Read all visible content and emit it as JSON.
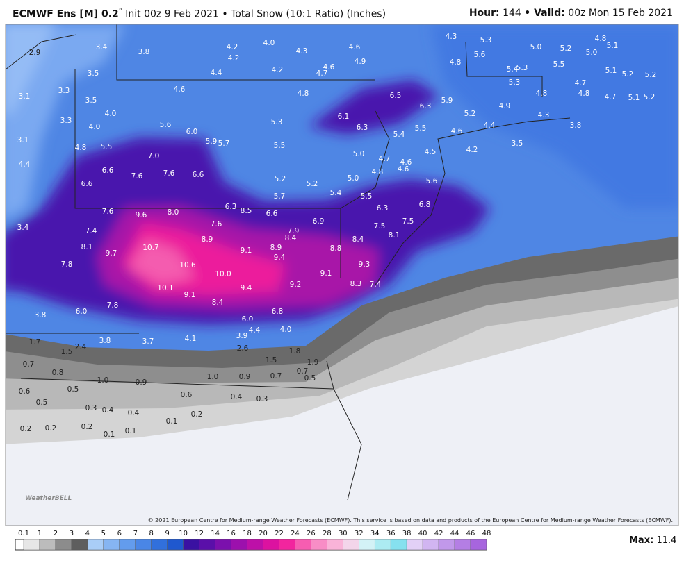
{
  "header": {
    "model": "ECMWF Ens [M] 0.2",
    "degree": "°",
    "subtitle": "Init 00z 9 Feb 2021 • Total Snow (10:1 Ratio) (Inches)",
    "hour_label": "Hour:",
    "hour": 144,
    "valid_label": "• Valid:",
    "valid": "00z Mon 15 Feb 2021"
  },
  "map": {
    "labels": [
      2.9,
      3.4,
      3.8,
      4.2,
      4.2,
      {
        "value": 4,
        "label": "4.0"
      },
      4.3,
      4.6,
      4.3,
      5.3,
      4.8,
      5.1,
      {
        "value": 5,
        "label": "5.0"
      },
      5.2,
      {
        "value": 5,
        "label": "5.0"
      },
      4.9,
      4.8,
      5.6,
      5.5,
      3.5,
      4.4,
      4.2,
      4.7,
      4.6,
      5.4,
      5.3,
      5.1,
      5.2,
      5.2,
      5.3,
      4.7,
      3.1,
      3.3,
      4.6,
      4.8,
      6.5,
      4.8,
      4.8,
      4.7,
      5.1,
      5.2,
      3.5,
      5.9,
      6.3,
      4.9,
      5.2,
      3.3,
      {
        "value": 4,
        "label": "4.0"
      },
      6.1,
      4.3,
      {
        "value": 4,
        "label": "4.0"
      },
      5.6,
      {
        "value": 6,
        "label": "6.0"
      },
      5.3,
      6.3,
      5.5,
      4.4,
      4.6,
      3.8,
      3.1,
      5.9,
      5.7,
      5.4,
      3.5,
      4.8,
      5.5,
      5.5,
      4.5,
      4.2,
      {
        "value": 7,
        "label": "7.0"
      },
      {
        "value": 5,
        "label": "5.0"
      },
      4.7,
      4.6,
      4.4,
      6.6,
      7.6,
      7.6,
      6.6,
      5.2,
      4.8,
      4.6,
      {
        "value": 5,
        "label": "5.0"
      },
      5.2,
      5.6,
      6.6,
      5.4,
      5.7,
      5.5,
      6.3,
      8.5,
      6.6,
      6.3,
      6.8,
      7.6,
      9.6,
      {
        "value": 8,
        "label": "8.0"
      },
      6.9,
      7.5,
      7.5,
      3.4,
      7.4,
      7.6,
      7.9,
      8.4,
      8.9,
      8.4,
      8.1,
      8.1,
      10.7,
      9.1,
      8.9,
      8.8,
      9.7,
      9.4,
      7.8,
      10.6,
      9.3,
      {
        "value": 10,
        "label": "10.0"
      },
      9.1,
      10.1,
      9.4,
      9.2,
      8.3,
      7.4,
      9.1,
      8.4,
      7.8,
      {
        "value": 6,
        "label": "6.0"
      },
      6.8,
      3.8,
      {
        "value": 6,
        "label": "6.0"
      },
      4.4,
      {
        "value": 4,
        "label": "4.0"
      },
      3.9,
      4.1,
      3.7,
      3.8,
      1.7,
      2.4,
      1.5,
      2.6,
      1.8,
      1.5,
      1.9,
      0.7,
      0.8,
      0.7,
      {
        "value": 1,
        "label": "1.0"
      },
      0.9,
      0.7,
      0.5,
      {
        "value": 1,
        "label": "1.0"
      },
      0.9,
      0.6,
      0.5,
      0.6,
      0.4,
      0.3,
      0.5,
      0.3,
      0.4,
      0.4,
      0.2,
      0.1,
      0.2,
      0.2,
      0.2,
      0.1,
      0.1
    ]
  },
  "colorbar": {
    "ticks": [
      0.1,
      1,
      2,
      3,
      4,
      5,
      6,
      7,
      8,
      9,
      10,
      12,
      14,
      16,
      18,
      20,
      22,
      24,
      26,
      28,
      30,
      32,
      34,
      36,
      38,
      40,
      42,
      44,
      46,
      48
    ],
    "colors": [
      "#e6e6e6",
      "#bcbcbc",
      "#8c8c8c",
      "#5e5e5e",
      "#a9cdf7",
      "#86b5f2",
      "#639ced",
      "#4a86e6",
      "#3170dc",
      "#1f58cf",
      "#3a11a2",
      "#5a0fa9",
      "#7b10ad",
      "#9c10ad",
      "#bd10a8",
      "#dc12a0",
      "#f2259e",
      "#f65db1",
      "#f88dc6",
      "#f9b3d8",
      "#f3d5ea",
      "#d3f2f6",
      "#acebf2",
      "#86e1ef",
      "#e2d0f6",
      "#d1b5f1",
      "#c198ea",
      "#b47ee4",
      "#a765de"
    ]
  },
  "footer": {
    "copyright": "© 2021 European Centre for Medium-range Weather Forecasts (ECMWF). This service is based on data and products of the European Centre for Medium-range Weather Forecasts (ECMWF).",
    "max_label": "Max:",
    "max": 11.4,
    "logo": "WeatherBELL"
  }
}
